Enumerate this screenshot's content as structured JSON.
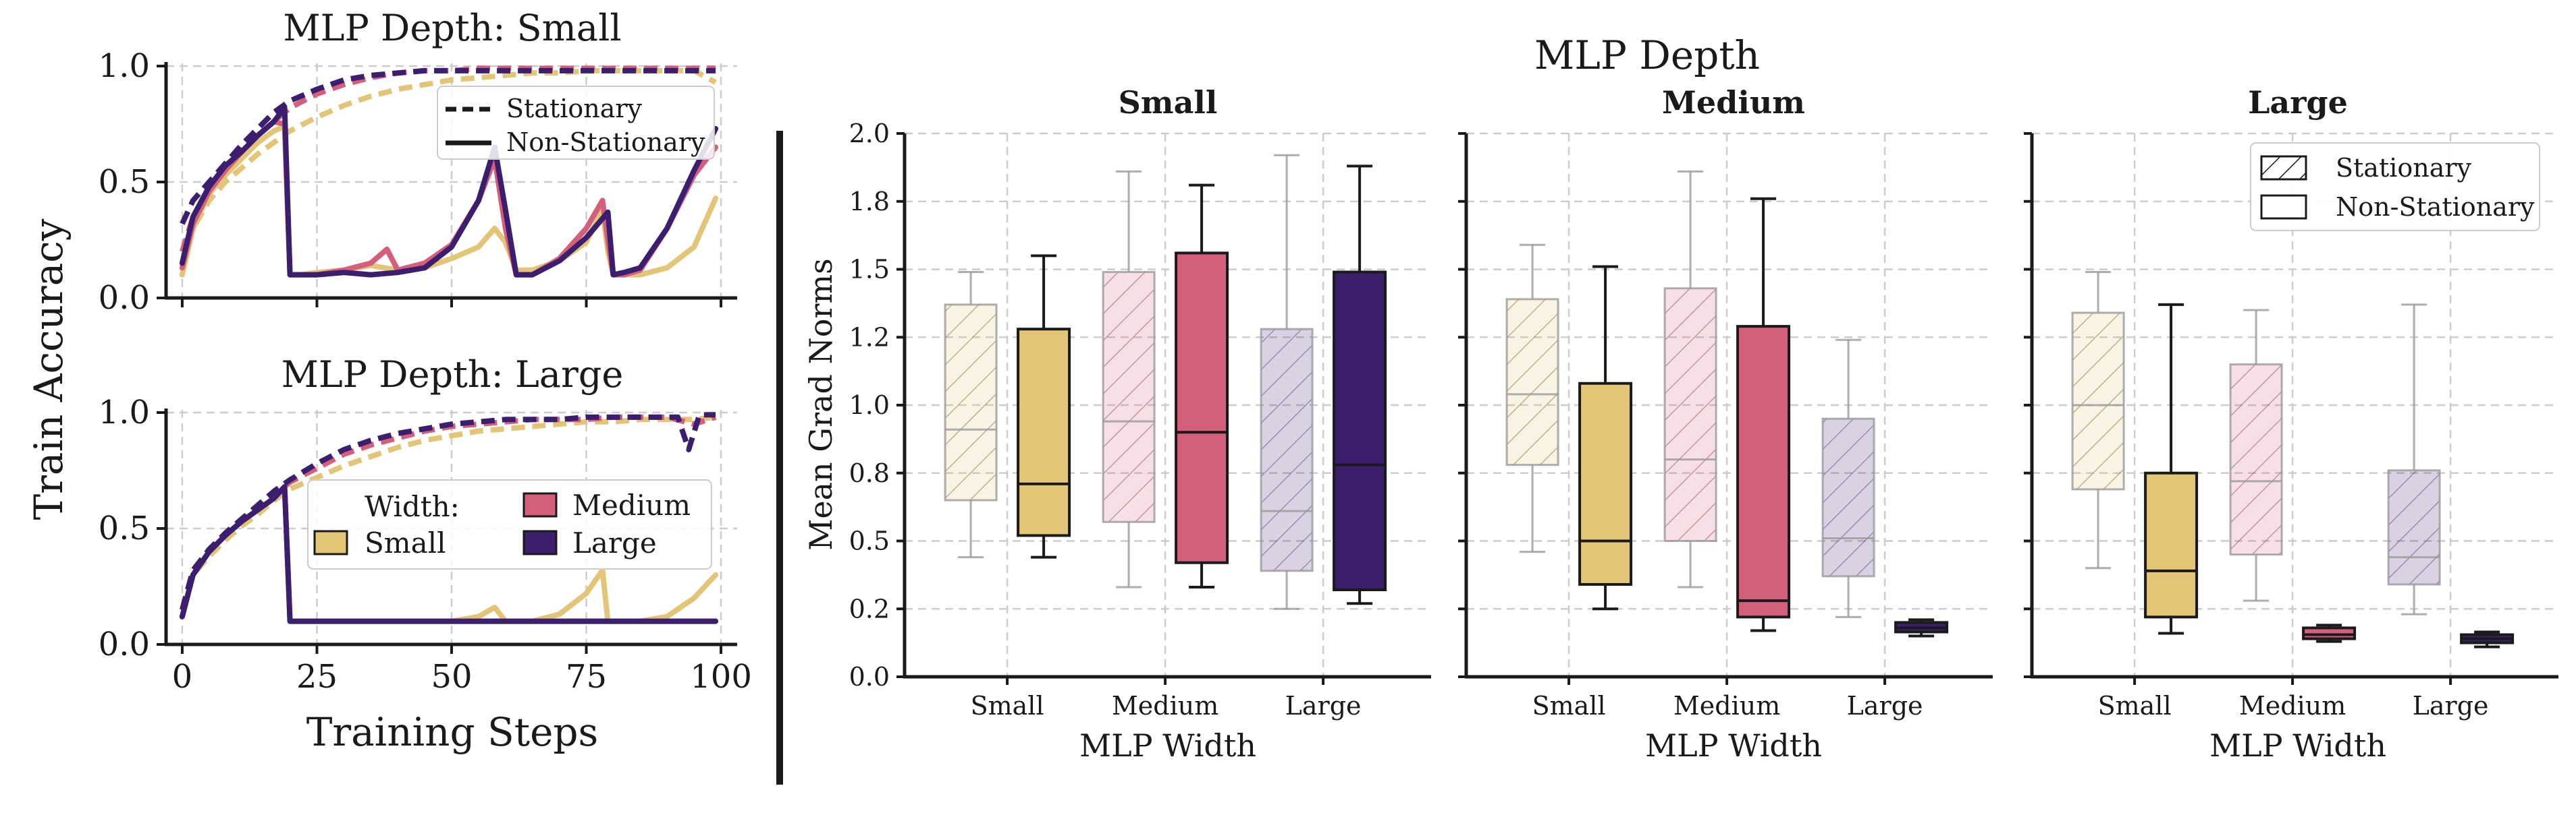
{
  "colors": {
    "small": "#e3c578",
    "medium": "#d45f7b",
    "large": "#3b1f6e",
    "axis": "#1a1a1a",
    "grid": "#cccccc"
  },
  "chart_data": [
    {
      "type": "line",
      "id": "line-top",
      "title": "MLP Depth: Small",
      "xlabel": "",
      "ylabel": "Train Accuracy",
      "xlim": [
        -3,
        103
      ],
      "ylim": [
        0,
        1
      ],
      "xticks": [
        "0",
        "25",
        "50",
        "75",
        "100"
      ],
      "yticks": [
        "0.0",
        "0.5",
        "1.0"
      ],
      "legend": {
        "position": "top-right",
        "entries": [
          {
            "style": "dashed",
            "label": "Stationary"
          },
          {
            "style": "solid",
            "label": "Non-Stationary"
          }
        ]
      },
      "series": [
        {
          "name": "Small Stationary",
          "width": "small",
          "style": "dashed",
          "x": [
            0,
            2,
            5,
            8,
            11,
            14,
            17,
            20,
            25,
            30,
            35,
            40,
            45,
            50,
            55,
            60,
            65,
            70,
            75,
            80,
            85,
            90,
            95,
            99
          ],
          "y": [
            0.15,
            0.3,
            0.42,
            0.5,
            0.56,
            0.62,
            0.67,
            0.72,
            0.78,
            0.83,
            0.87,
            0.9,
            0.92,
            0.94,
            0.95,
            0.96,
            0.97,
            0.97,
            0.98,
            0.98,
            0.98,
            0.98,
            0.98,
            0.93
          ]
        },
        {
          "name": "Medium Stationary",
          "width": "medium",
          "style": "dashed",
          "x": [
            0,
            2,
            5,
            8,
            11,
            14,
            17,
            20,
            25,
            30,
            35,
            40,
            45,
            50,
            55,
            60,
            65,
            70,
            75,
            80,
            85,
            90,
            95,
            99
          ],
          "y": [
            0.2,
            0.35,
            0.47,
            0.55,
            0.63,
            0.7,
            0.76,
            0.82,
            0.88,
            0.92,
            0.95,
            0.97,
            0.98,
            0.98,
            0.99,
            0.99,
            0.99,
            0.99,
            0.99,
            0.99,
            0.99,
            0.99,
            0.99,
            0.99
          ]
        },
        {
          "name": "Large Stationary",
          "width": "large",
          "style": "dashed",
          "x": [
            0,
            2,
            5,
            8,
            11,
            14,
            17,
            20,
            25,
            30,
            35,
            40,
            45,
            50,
            55,
            60,
            65,
            70,
            75,
            80,
            85,
            90,
            95,
            99
          ],
          "y": [
            0.32,
            0.42,
            0.5,
            0.58,
            0.66,
            0.73,
            0.8,
            0.85,
            0.9,
            0.94,
            0.96,
            0.97,
            0.98,
            0.98,
            0.98,
            0.98,
            0.98,
            0.98,
            0.98,
            0.98,
            0.98,
            0.98,
            0.98,
            0.98
          ]
        },
        {
          "name": "Small Non-Stationary",
          "width": "small",
          "style": "solid",
          "x": [
            0,
            2,
            5,
            8,
            11,
            14,
            17,
            19,
            20,
            22,
            25,
            30,
            35,
            40,
            45,
            50,
            55,
            58,
            60,
            62,
            65,
            70,
            75,
            78,
            79,
            80,
            82,
            85,
            90,
            95,
            99
          ],
          "y": [
            0.1,
            0.3,
            0.45,
            0.53,
            0.6,
            0.67,
            0.72,
            0.74,
            0.1,
            0.1,
            0.11,
            0.12,
            0.14,
            0.12,
            0.13,
            0.17,
            0.22,
            0.3,
            0.24,
            0.12,
            0.12,
            0.16,
            0.24,
            0.38,
            0.2,
            0.1,
            0.1,
            0.1,
            0.13,
            0.22,
            0.43
          ]
        },
        {
          "name": "Medium Non-Stationary",
          "width": "medium",
          "style": "solid",
          "x": [
            0,
            2,
            5,
            8,
            11,
            14,
            17,
            19,
            20,
            22,
            25,
            30,
            35,
            38,
            40,
            45,
            50,
            55,
            58,
            60,
            62,
            65,
            70,
            75,
            78,
            79,
            80,
            82,
            85,
            90,
            95,
            99
          ],
          "y": [
            0.13,
            0.32,
            0.46,
            0.55,
            0.63,
            0.7,
            0.76,
            0.75,
            0.1,
            0.1,
            0.1,
            0.12,
            0.15,
            0.21,
            0.12,
            0.15,
            0.23,
            0.42,
            0.6,
            0.3,
            0.1,
            0.1,
            0.17,
            0.3,
            0.42,
            0.25,
            0.1,
            0.1,
            0.12,
            0.3,
            0.53,
            0.65
          ]
        },
        {
          "name": "Large Non-Stationary",
          "width": "large",
          "style": "solid",
          "x": [
            0,
            2,
            5,
            8,
            11,
            14,
            17,
            19,
            20,
            22,
            25,
            30,
            35,
            40,
            45,
            50,
            55,
            58,
            60,
            62,
            65,
            70,
            75,
            79,
            80,
            82,
            85,
            90,
            95,
            99
          ],
          "y": [
            0.15,
            0.35,
            0.48,
            0.57,
            0.63,
            0.7,
            0.76,
            0.82,
            0.1,
            0.1,
            0.1,
            0.11,
            0.1,
            0.11,
            0.13,
            0.22,
            0.42,
            0.65,
            0.38,
            0.1,
            0.1,
            0.16,
            0.26,
            0.37,
            0.1,
            0.11,
            0.13,
            0.3,
            0.55,
            0.73
          ]
        }
      ]
    },
    {
      "type": "line",
      "id": "line-bottom",
      "title": "MLP Depth: Large",
      "xlabel": "Training Steps",
      "ylabel": "Train Accuracy",
      "xlim": [
        -3,
        103
      ],
      "ylim": [
        0,
        1
      ],
      "xticks": [
        "0",
        "25",
        "50",
        "75",
        "100"
      ],
      "yticks": [
        "0.0",
        "0.5",
        "1.0"
      ],
      "legend": {
        "position": "bottom-right",
        "title": "Width:",
        "entries": [
          {
            "width": "small",
            "label": "Small"
          },
          {
            "width": "medium",
            "label": "Medium"
          },
          {
            "width": "large",
            "label": "Large"
          }
        ]
      },
      "series": [
        {
          "name": "Small Stationary",
          "width": "small",
          "style": "dashed",
          "x": [
            0,
            2,
            5,
            8,
            11,
            14,
            17,
            20,
            25,
            30,
            35,
            40,
            45,
            50,
            55,
            60,
            65,
            70,
            75,
            80,
            85,
            90,
            95,
            99
          ],
          "y": [
            0.15,
            0.3,
            0.38,
            0.45,
            0.51,
            0.56,
            0.62,
            0.67,
            0.72,
            0.77,
            0.81,
            0.85,
            0.88,
            0.9,
            0.92,
            0.93,
            0.94,
            0.95,
            0.96,
            0.96,
            0.97,
            0.97,
            0.97,
            0.98
          ]
        },
        {
          "name": "Medium Stationary",
          "width": "medium",
          "style": "dashed",
          "x": [
            0,
            2,
            5,
            8,
            11,
            14,
            17,
            20,
            25,
            30,
            35,
            40,
            45,
            50,
            55,
            60,
            65,
            70,
            75,
            80,
            85,
            90,
            95,
            99
          ],
          "y": [
            0.15,
            0.32,
            0.4,
            0.47,
            0.53,
            0.59,
            0.64,
            0.7,
            0.76,
            0.82,
            0.86,
            0.89,
            0.92,
            0.94,
            0.95,
            0.96,
            0.97,
            0.97,
            0.97,
            0.98,
            0.98,
            0.98,
            0.95,
            0.98
          ]
        },
        {
          "name": "Large Stationary",
          "width": "large",
          "style": "dashed",
          "x": [
            0,
            2,
            5,
            8,
            11,
            14,
            17,
            20,
            25,
            30,
            35,
            40,
            45,
            50,
            55,
            60,
            65,
            70,
            75,
            80,
            85,
            90,
            92,
            94,
            96,
            99
          ],
          "y": [
            0.15,
            0.32,
            0.41,
            0.48,
            0.54,
            0.6,
            0.66,
            0.71,
            0.78,
            0.84,
            0.88,
            0.91,
            0.93,
            0.95,
            0.96,
            0.97,
            0.97,
            0.97,
            0.98,
            0.98,
            0.98,
            0.98,
            0.98,
            0.84,
            0.99,
            0.99
          ]
        },
        {
          "name": "Small Non-Stationary",
          "width": "small",
          "style": "solid",
          "x": [
            0,
            2,
            5,
            8,
            11,
            14,
            17,
            19,
            20,
            22,
            25,
            30,
            40,
            50,
            55,
            58,
            60,
            62,
            65,
            70,
            75,
            78,
            79,
            80,
            82,
            85,
            90,
            95,
            99
          ],
          "y": [
            0.12,
            0.3,
            0.4,
            0.47,
            0.53,
            0.58,
            0.63,
            0.68,
            0.1,
            0.1,
            0.1,
            0.1,
            0.1,
            0.1,
            0.12,
            0.16,
            0.1,
            0.1,
            0.1,
            0.13,
            0.22,
            0.32,
            0.1,
            0.1,
            0.1,
            0.1,
            0.12,
            0.2,
            0.3
          ]
        },
        {
          "name": "Medium Non-Stationary",
          "width": "medium",
          "style": "solid",
          "x": [
            0,
            2,
            5,
            8,
            11,
            14,
            17,
            19,
            20,
            22,
            25,
            30,
            40,
            50,
            60,
            70,
            80,
            90,
            99
          ],
          "y": [
            0.12,
            0.3,
            0.4,
            0.47,
            0.53,
            0.58,
            0.63,
            0.68,
            0.1,
            0.1,
            0.1,
            0.1,
            0.1,
            0.1,
            0.1,
            0.1,
            0.1,
            0.1,
            0.1
          ]
        },
        {
          "name": "Large Non-Stationary",
          "width": "large",
          "style": "solid",
          "x": [
            0,
            2,
            5,
            8,
            11,
            14,
            17,
            19,
            20,
            22,
            25,
            30,
            40,
            50,
            60,
            70,
            80,
            90,
            99
          ],
          "y": [
            0.12,
            0.3,
            0.4,
            0.47,
            0.53,
            0.58,
            0.63,
            0.68,
            0.1,
            0.1,
            0.1,
            0.1,
            0.1,
            0.1,
            0.1,
            0.1,
            0.1,
            0.1,
            0.1
          ]
        }
      ]
    },
    {
      "type": "box",
      "id": "box-small",
      "suptitle": "MLP Depth",
      "title": "Small",
      "xlabel": "MLP Width",
      "ylabel": "Mean Grad Norms",
      "ylim": [
        0,
        2.0
      ],
      "ytick_values": [
        0,
        0.25,
        0.5,
        0.75,
        1.0,
        1.25,
        1.5,
        1.75,
        2.0
      ],
      "ytick_labels": [
        "0.0",
        "0.2",
        "0.5",
        "0.8",
        "1.0",
        "1.2",
        "1.5",
        "1.8",
        "2.0"
      ],
      "categories": [
        "Small",
        "Medium",
        "Large"
      ],
      "boxes": [
        {
          "category": "Small",
          "kind": "Stationary",
          "width": "small",
          "whislo": 0.44,
          "q1": 0.65,
          "med": 0.91,
          "q3": 1.37,
          "whishi": 1.49
        },
        {
          "category": "Small",
          "kind": "Non-Stationary",
          "width": "small",
          "whislo": 0.44,
          "q1": 0.52,
          "med": 0.71,
          "q3": 1.28,
          "whishi": 1.55
        },
        {
          "category": "Medium",
          "kind": "Stationary",
          "width": "medium",
          "whislo": 0.33,
          "q1": 0.57,
          "med": 0.94,
          "q3": 1.49,
          "whishi": 1.86
        },
        {
          "category": "Medium",
          "kind": "Non-Stationary",
          "width": "medium",
          "whislo": 0.33,
          "q1": 0.42,
          "med": 0.9,
          "q3": 1.56,
          "whishi": 1.81
        },
        {
          "category": "Large",
          "kind": "Stationary",
          "width": "large",
          "whislo": 0.25,
          "q1": 0.39,
          "med": 0.61,
          "q3": 1.28,
          "whishi": 1.92
        },
        {
          "category": "Large",
          "kind": "Non-Stationary",
          "width": "large",
          "whislo": 0.27,
          "q1": 0.32,
          "med": 0.78,
          "q3": 1.49,
          "whishi": 1.88
        }
      ]
    },
    {
      "type": "box",
      "id": "box-medium",
      "title": "Medium",
      "xlabel": "MLP Width",
      "ylim": [
        0,
        2.0
      ],
      "categories": [
        "Small",
        "Medium",
        "Large"
      ],
      "boxes": [
        {
          "category": "Small",
          "kind": "Stationary",
          "width": "small",
          "whislo": 0.46,
          "q1": 0.78,
          "med": 1.04,
          "q3": 1.39,
          "whishi": 1.59
        },
        {
          "category": "Small",
          "kind": "Non-Stationary",
          "width": "small",
          "whislo": 0.25,
          "q1": 0.34,
          "med": 0.5,
          "q3": 1.08,
          "whishi": 1.51
        },
        {
          "category": "Medium",
          "kind": "Stationary",
          "width": "medium",
          "whislo": 0.33,
          "q1": 0.5,
          "med": 0.8,
          "q3": 1.43,
          "whishi": 1.86
        },
        {
          "category": "Medium",
          "kind": "Non-Stationary",
          "width": "medium",
          "whislo": 0.17,
          "q1": 0.22,
          "med": 0.28,
          "q3": 1.29,
          "whishi": 1.76
        },
        {
          "category": "Large",
          "kind": "Stationary",
          "width": "large",
          "whislo": 0.22,
          "q1": 0.37,
          "med": 0.51,
          "q3": 0.95,
          "whishi": 1.24
        },
        {
          "category": "Large",
          "kind": "Non-Stationary",
          "width": "large",
          "whislo": 0.15,
          "q1": 0.165,
          "med": 0.18,
          "q3": 0.2,
          "whishi": 0.21
        }
      ]
    },
    {
      "type": "box",
      "id": "box-large",
      "title": "Large",
      "xlabel": "MLP Width",
      "ylim": [
        0,
        2.0
      ],
      "categories": [
        "Small",
        "Medium",
        "Large"
      ],
      "legend": {
        "position": "top-right",
        "entries": [
          {
            "style": "hatched",
            "label": "Stationary"
          },
          {
            "style": "plain",
            "label": "Non-Stationary"
          }
        ]
      },
      "boxes": [
        {
          "category": "Small",
          "kind": "Stationary",
          "width": "small",
          "whislo": 0.4,
          "q1": 0.69,
          "med": 1.0,
          "q3": 1.34,
          "whishi": 1.49
        },
        {
          "category": "Small",
          "kind": "Non-Stationary",
          "width": "small",
          "whislo": 0.16,
          "q1": 0.22,
          "med": 0.39,
          "q3": 0.75,
          "whishi": 1.37
        },
        {
          "category": "Medium",
          "kind": "Stationary",
          "width": "medium",
          "whislo": 0.28,
          "q1": 0.45,
          "med": 0.72,
          "q3": 1.15,
          "whishi": 1.35
        },
        {
          "category": "Medium",
          "kind": "Non-Stationary",
          "width": "medium",
          "whislo": 0.13,
          "q1": 0.14,
          "med": 0.155,
          "q3": 0.18,
          "whishi": 0.19
        },
        {
          "category": "Large",
          "kind": "Stationary",
          "width": "large",
          "whislo": 0.23,
          "q1": 0.34,
          "med": 0.44,
          "q3": 0.76,
          "whishi": 1.37
        },
        {
          "category": "Large",
          "kind": "Non-Stationary",
          "width": "large",
          "whislo": 0.11,
          "q1": 0.125,
          "med": 0.14,
          "q3": 0.155,
          "whishi": 0.165
        }
      ]
    }
  ]
}
